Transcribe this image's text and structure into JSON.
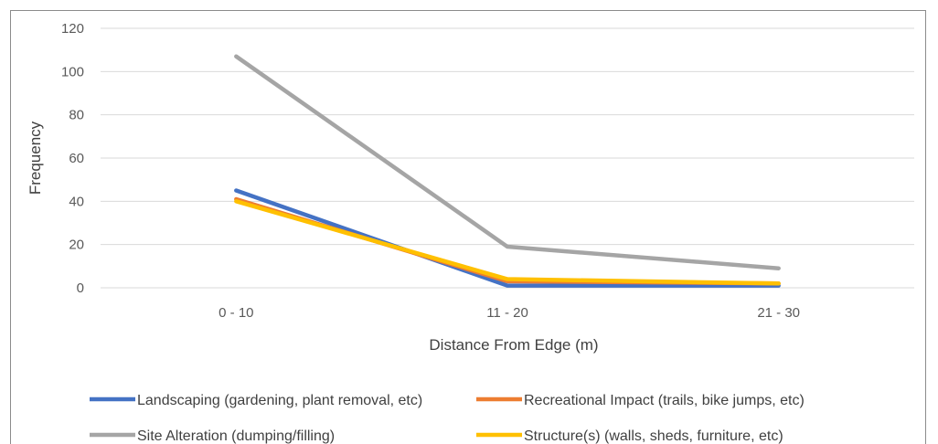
{
  "chart_data": {
    "type": "line",
    "title": "",
    "xlabel": "Distance From Edge (m)",
    "ylabel": "Frequency",
    "categories": [
      "0 - 10",
      "11 - 20",
      "21 - 30"
    ],
    "ylim": [
      0,
      120
    ],
    "yticks": [
      0,
      20,
      40,
      60,
      80,
      100,
      120
    ],
    "grid": true,
    "legend_position": "bottom",
    "series": [
      {
        "name": "Landscaping (gardening, plant removal, etc)",
        "color": "#4472c4",
        "values": [
          45,
          1,
          1
        ]
      },
      {
        "name": "Recreational Impact (trails, bike jumps, etc)",
        "color": "#ed7d31",
        "values": [
          41,
          3,
          2
        ]
      },
      {
        "name": "Site Alteration (dumping/filling)",
        "color": "#a5a5a5",
        "values": [
          107,
          19,
          9
        ]
      },
      {
        "name": "Structure(s) (walls, sheds, furniture, etc)",
        "color": "#ffc000",
        "values": [
          40,
          4,
          2
        ]
      }
    ]
  }
}
